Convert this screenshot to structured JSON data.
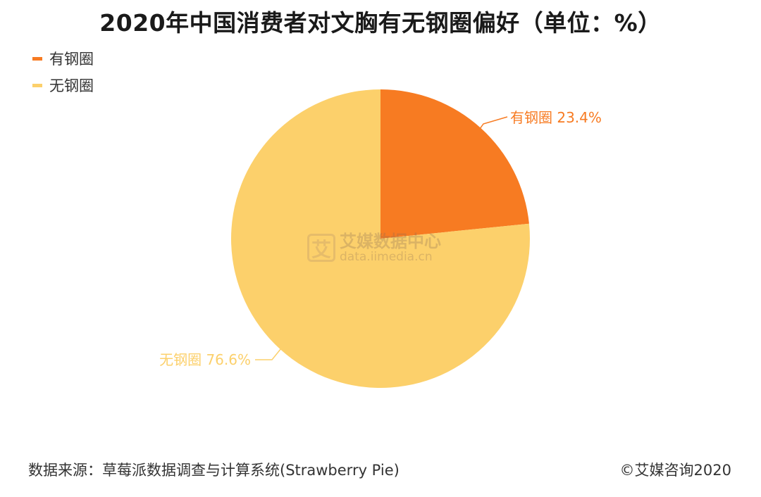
{
  "title": "2020年中国消费者对文胸有无钢圈偏好（单位：%）",
  "legend": [
    {
      "label": "有钢圈",
      "color": "#F77B22"
    },
    {
      "label": "无钢圈",
      "color": "#FCD06B"
    }
  ],
  "chart_data": {
    "type": "pie",
    "title": "2020年中国消费者对文胸有无钢圈偏好（单位：%）",
    "unit": "%",
    "slices": [
      {
        "label": "有钢圈",
        "value": 23.4,
        "color": "#F77B22",
        "data_label": "有钢圈 23.4%"
      },
      {
        "label": "无钢圈",
        "value": 76.6,
        "color": "#FCD06B",
        "data_label": "无钢圈 76.6%"
      }
    ],
    "legend_position": "top-left"
  },
  "watermark": {
    "logo_char": "艾",
    "name": "艾媒数据中心",
    "url": "data.iimedia.cn"
  },
  "footer": {
    "source": "数据来源：草莓派数据调查与计算系统(Strawberry Pie)",
    "copyright": "©艾媒咨询2020"
  }
}
